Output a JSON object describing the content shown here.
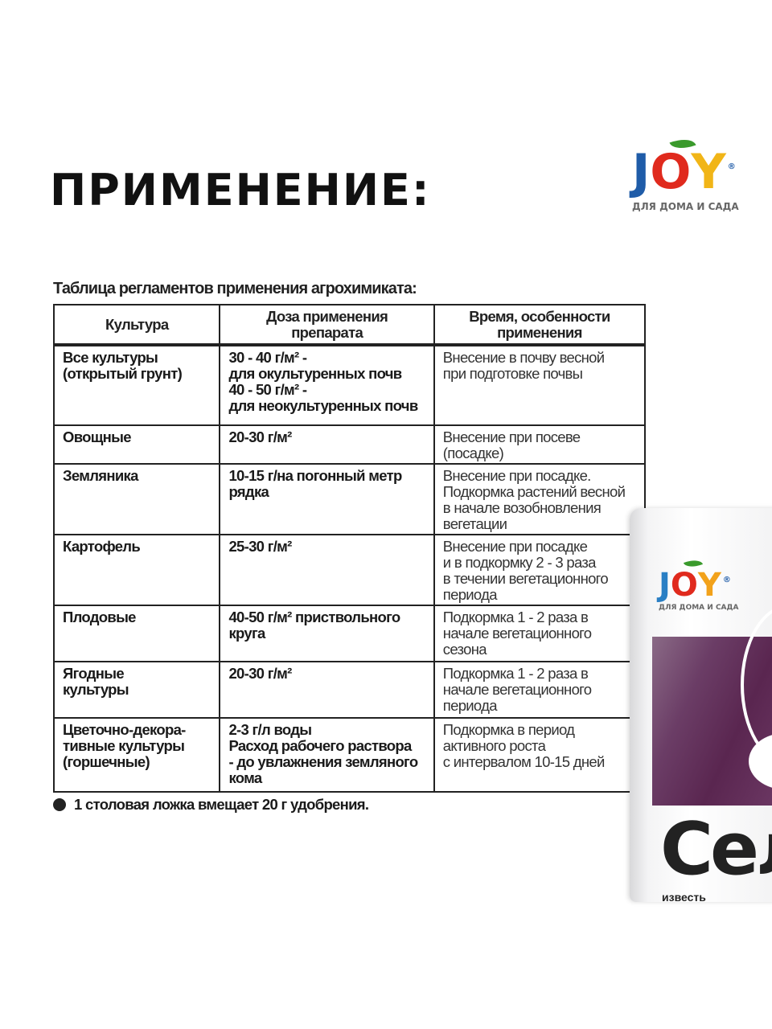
{
  "page_title": "ПРИМЕНЕНИЕ:",
  "brand": {
    "logo_text": "JOY",
    "registered": "®",
    "tagline": "ДЛЯ ДОМА И САДА",
    "colors": {
      "j": "#1f5ca8",
      "o": "#e02a1d",
      "y": "#f1b517",
      "leaf": "#3a9a2c"
    }
  },
  "table": {
    "caption": "Таблица регламентов применения агрохимиката:",
    "headers": [
      "Культура",
      "Доза применения\nпрепарата",
      "Время, особенности\nприменения"
    ],
    "rows": [
      [
        "Все культуры\n(открытый грунт)",
        "30 - 40 г/м² -\nдля окультуренных почв\n40 - 50 г/м² -\nдля неокультуренных почв",
        "Внесение в почву весной\nпри подготовке почвы"
      ],
      [
        "Овощные",
        "20-30 г/м²",
        "Внесение при посеве\n(посадке)"
      ],
      [
        "Земляника",
        "10-15 г/на погонный метр\nрядка",
        "Внесение при посадке.\nПодкормка растений весной\nв начале возобновления\nвегетации"
      ],
      [
        "Картофель",
        "25-30 г/м²",
        "Внесение при посадке\nи в подкормку 2 - 3 раза\nв течении вегетационного\nпериода"
      ],
      [
        "Плодовые",
        "40-50 г/м² приствольного\nкруга",
        "Подкормка 1 - 2 раза в\nначале вегетационного\nсезона"
      ],
      [
        "Ягодные\nкультуры",
        "20-30 г/м²",
        "Подкормка 1 - 2 раза в\nначале вегетационного\nпериода"
      ],
      [
        "Цветочно-декора-\nтивные культуры\n(горшечные)",
        "2-3 г/л воды\nРасход рабочего раствора\n- до увлажнения земляного\nкома",
        "Подкормка в период\nактивного роста\nс интервалом 10-15 дней"
      ]
    ]
  },
  "note": "1 столовая ложка вмещает 20 г удобрения.",
  "package": {
    "name_partial": "Сел",
    "desc_partial": "известь",
    "band_color": "#5a2650"
  }
}
